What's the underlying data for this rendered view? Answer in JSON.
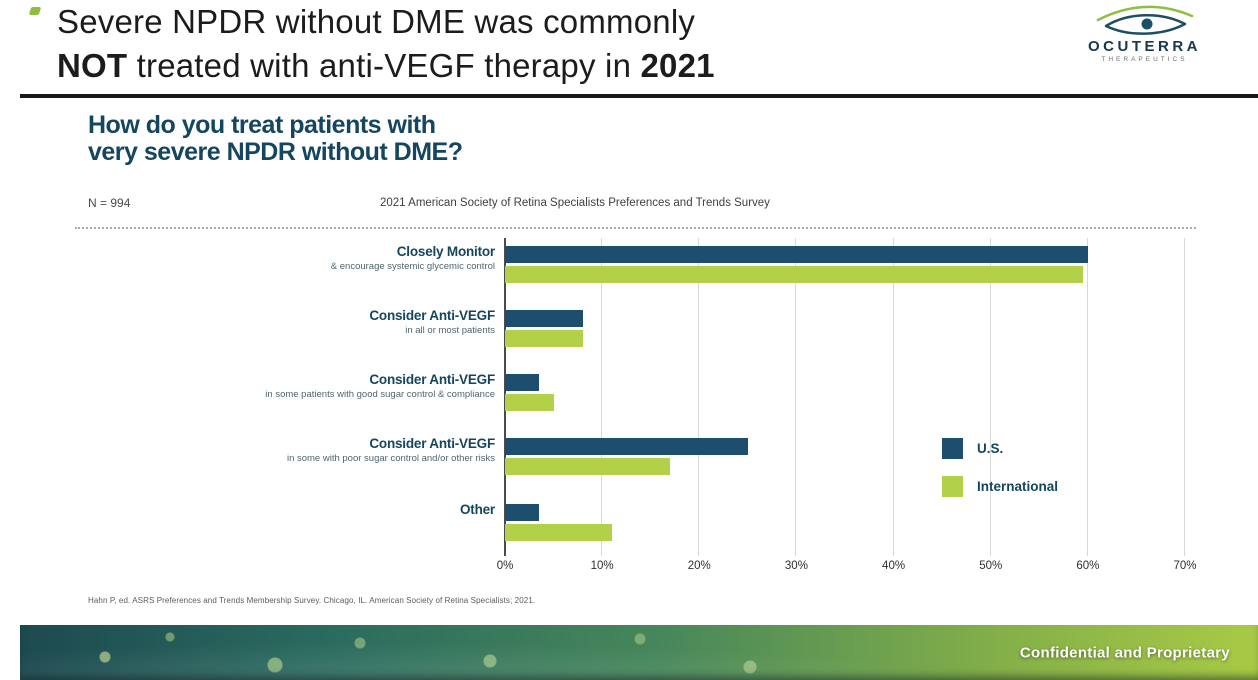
{
  "slide": {
    "title": {
      "line1": "Severe NPDR without DME was commonly",
      "line2_bold1": "NOT",
      "line2_text": " treated with anti-VEGF therapy in ",
      "line2_bold2": "2021"
    },
    "question": {
      "line1": "How do you treat patients with",
      "line2": "very severe NPDR without DME?"
    }
  },
  "logo": {
    "brand": "OCUTERRA",
    "sub": "THERAPEUTICS"
  },
  "chart_data": {
    "type": "bar",
    "orientation": "horizontal",
    "title": "How do you treat patients with very severe NPDR without DME?",
    "n_label": "N = 994",
    "subtitle": "2021 American Society of Retina Specialists Preferences and Trends Survey",
    "categories": [
      {
        "label": "Closely Monitor",
        "sublabel": "& encourage systemic glycemic control"
      },
      {
        "label": "Consider Anti-VEGF",
        "sublabel": "in all or most patients"
      },
      {
        "label": "Consider Anti-VEGF",
        "sublabel": "in some patients with good sugar control & compliance"
      },
      {
        "label": "Consider Anti-VEGF",
        "sublabel": "in some with poor sugar control and/or other risks"
      },
      {
        "label": "Other",
        "sublabel": ""
      }
    ],
    "series": [
      {
        "name": "U.S.",
        "color": "#1e4e6e",
        "values": [
          60,
          8,
          3.5,
          25,
          3.5
        ]
      },
      {
        "name": "International",
        "color": "#b2d148",
        "values": [
          59.5,
          8,
          5,
          17,
          11
        ]
      }
    ],
    "x_ticks": [
      "0%",
      "10%",
      "20%",
      "30%",
      "40%",
      "50%",
      "60%",
      "70%"
    ],
    "xlim": [
      0,
      70
    ],
    "grid": true,
    "legend_position": "right-middle"
  },
  "footer": {
    "citation": "Hahn P, ed. ASRS Preferences and Trends Membership Survey. Chicago, IL. American Society of Retina Specialists; 2021.",
    "confidential": "Confidential and Proprietary"
  },
  "colors": {
    "us_bar": "#1e4e6e",
    "international_bar": "#b2d148",
    "heading_navy": "#15465f",
    "banner_green": "#a8ca45"
  }
}
